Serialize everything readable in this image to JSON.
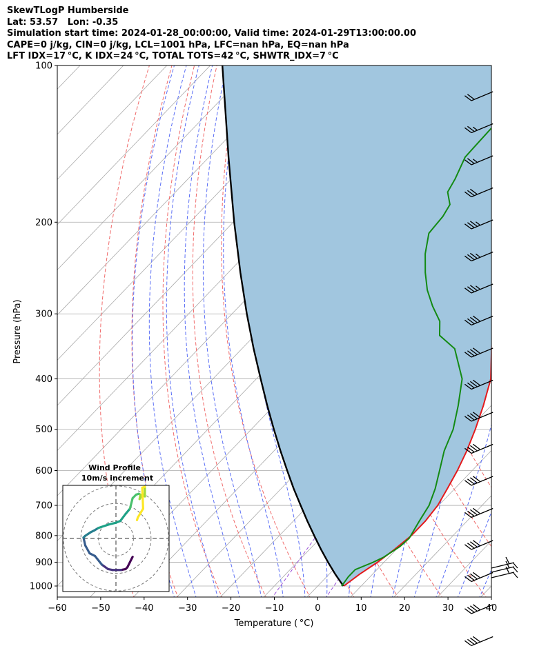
{
  "header": {
    "line1": "SkewTLogP Humberside",
    "line2": "Lat: 53.57   Lon: -0.35",
    "line3": "Simulation start time: 2024-01-28_00:00:00, Valid time: 2024-01-29T13:00:00.00",
    "line4": "CAPE=0 j/kg, CIN=0 j/kg, LCL=1001 hPa, LFC=nan hPa, EQ=nan hPa",
    "line5": "LFT IDX=17 °C, K IDX=24 °C, TOTAL TOTS=42 °C, SHWTR_IDX=7 °C"
  },
  "colors": {
    "temperature": "#e41a1c",
    "dewpoint": "#138a13",
    "parcel": "#000000",
    "fill": "#a1c6df",
    "dry_adiabat": "#f06a6a",
    "moist_adiabat": "#5a6ef5",
    "mixing_ratio": "#9a4fd8",
    "isotherm": "#aaaaaa",
    "isobar": "#aaaaaa"
  },
  "chart_data": [
    {
      "type": "line",
      "title": "",
      "xlabel": "Temperature ( °C)",
      "ylabel": "Pressure (hPa)",
      "xlim": [
        -60,
        40
      ],
      "ylim": [
        1050,
        100
      ],
      "y_scale": "log",
      "skew": "45deg",
      "x_ticks": [
        -60,
        -50,
        -40,
        -30,
        -20,
        -10,
        0,
        10,
        20,
        30,
        40
      ],
      "x_tick_labels": [
        "−60",
        "−50",
        "−40",
        "−30",
        "−20",
        "−10",
        "0",
        "10",
        "20",
        "30",
        "40"
      ],
      "y_ticks": [
        1000,
        900,
        800,
        700,
        600,
        500,
        400,
        300,
        200,
        100
      ],
      "y_tick_labels": [
        "1000",
        "900",
        "800",
        "700",
        "600",
        "500",
        "400",
        "300",
        "200",
        "100"
      ],
      "grid": true,
      "series": [
        {
          "role": "temperature",
          "points": [
            [
              1000,
              6.0
            ],
            [
              950,
              7.0
            ],
            [
              900,
              8.5
            ],
            [
              850,
              9.6
            ],
            [
              800,
              10.4
            ],
            [
              750,
              10.4
            ],
            [
              700,
              9.8
            ],
            [
              650,
              8.3
            ],
            [
              600,
              6.6
            ],
            [
              550,
              4.4
            ],
            [
              500,
              1.6
            ],
            [
              450,
              -1.8
            ],
            [
              400,
              -6.0
            ],
            [
              350,
              -12.5
            ],
            [
              300,
              -19.8
            ],
            [
              250,
              -28.3
            ],
            [
              230,
              -32.3
            ],
            [
              210,
              -37.0
            ],
            [
              200,
              -39.5
            ],
            [
              185,
              -42.2
            ],
            [
              175,
              -43.5
            ],
            [
              160,
              -44.8
            ],
            [
              150,
              -45.5
            ],
            [
              140,
              -46.6
            ],
            [
              130,
              -47.8
            ],
            [
              120,
              -49.4
            ],
            [
              110,
              -51.6
            ],
            [
              100,
              -54.5
            ]
          ]
        },
        {
          "role": "dewpoint",
          "points": [
            [
              1000,
              5.5
            ],
            [
              960,
              5.0
            ],
            [
              930,
              5.0
            ],
            [
              900,
              7.5
            ],
            [
              880,
              8.8
            ],
            [
              840,
              10.2
            ],
            [
              810,
              10.5
            ],
            [
              750,
              9.0
            ],
            [
              700,
              7.8
            ],
            [
              650,
              5.5
            ],
            [
              600,
              2.5
            ],
            [
              550,
              -0.8
            ],
            [
              500,
              -3.5
            ],
            [
              450,
              -7.6
            ],
            [
              400,
              -12.6
            ],
            [
              350,
              -21.0
            ],
            [
              330,
              -27.4
            ],
            [
              310,
              -30.5
            ],
            [
              290,
              -35.5
            ],
            [
              270,
              -40.3
            ],
            [
              250,
              -44.6
            ],
            [
              230,
              -48.8
            ],
            [
              210,
              -52.5
            ],
            [
              195,
              -53.0
            ],
            [
              185,
              -54.0
            ],
            [
              175,
              -57.3
            ],
            [
              165,
              -58.5
            ],
            [
              150,
              -61.0
            ],
            [
              140,
              -61.2
            ],
            [
              130,
              -61.4
            ],
            [
              120,
              -61.6
            ],
            [
              110,
              -61.8
            ],
            [
              100,
              -61.0
            ]
          ]
        },
        {
          "role": "parcel",
          "points": [
            [
              1000,
              5.9
            ],
            [
              950,
              1.5
            ],
            [
              900,
              -2.9
            ],
            [
              850,
              -7.4
            ],
            [
              800,
              -12.0
            ],
            [
              750,
              -16.8
            ],
            [
              700,
              -21.8
            ],
            [
              650,
              -27.1
            ],
            [
              600,
              -32.6
            ],
            [
              550,
              -38.5
            ],
            [
              500,
              -44.8
            ],
            [
              450,
              -51.6
            ],
            [
              400,
              -59.0
            ],
            [
              350,
              -67.3
            ],
            [
              300,
              -76.6
            ],
            [
              250,
              -87.2
            ],
            [
              200,
              -99.8
            ],
            [
              150,
              -115.5
            ],
            [
              100,
              -137.2
            ]
          ]
        }
      ],
      "dry_adiabats_theta_k": [
        230,
        240,
        250,
        260,
        270,
        280,
        290,
        300,
        310,
        320,
        330
      ],
      "moist_adiabats_start_c": [
        -30,
        -25,
        -20,
        -15,
        -10,
        -5,
        0,
        5,
        10,
        15,
        20,
        25,
        30,
        35,
        40
      ],
      "mixing_ratio_lines_gkg": [
        0.002,
        0.005
      ],
      "wind_barbs": {
        "speed_kt": [
          21,
          24,
          27,
          30,
          33,
          35,
          36,
          38,
          40,
          41,
          43,
          44,
          45,
          47,
          48,
          49,
          50,
          50,
          43
        ]
      }
    },
    {
      "type": "scatter",
      "title": "Wind Profile",
      "subtitle": "10m/s increment",
      "ring_step": 10,
      "color_scale": "viridis",
      "u": [
        9.5,
        9.0,
        8.0,
        6.5,
        5.5,
        3.0,
        0.5,
        -2.0,
        -4.5,
        -8.0,
        -12.0,
        -15.0,
        -17.5,
        -18.5,
        -17.5,
        -14.5,
        -12.5,
        -10.0,
        -4.0,
        0.0,
        2.5,
        5.5,
        8.0,
        9.5,
        11.5,
        13.0,
        14.0,
        13.5,
        15.0,
        16.5,
        16.5,
        15.0,
        15.5,
        12.5,
        12.0
      ],
      "v": [
        -10.5,
        -11.5,
        -13.5,
        -16.5,
        -17.5,
        -18.0,
        -18.0,
        -18.0,
        -17.5,
        -15.0,
        -10.0,
        -8.5,
        -4.0,
        0.5,
        1.5,
        3.5,
        4.5,
        6.0,
        8.0,
        9.0,
        10.0,
        14.0,
        17.0,
        23.0,
        25.0,
        25.5,
        25.0,
        22.5,
        25.0,
        24.0,
        29.5,
        29.0,
        17.0,
        12.0,
        10.5
      ]
    }
  ]
}
